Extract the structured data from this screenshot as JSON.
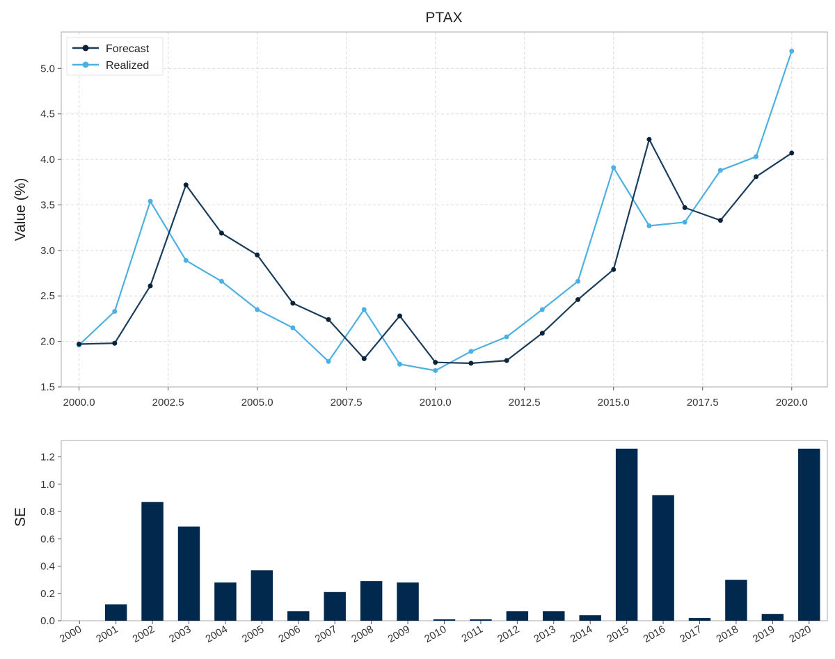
{
  "chart_data": [
    {
      "type": "line",
      "title": "PTAX",
      "xlabel": "",
      "ylabel": "Value (%)",
      "xlim": [
        1999.5,
        2021.0
      ],
      "ylim": [
        1.5,
        5.4
      ],
      "x_ticks": [
        "2000.0",
        "2002.5",
        "2005.0",
        "2007.5",
        "2010.0",
        "2012.5",
        "2015.0",
        "2017.5",
        "2020.0"
      ],
      "y_ticks": [
        "1.5",
        "2.0",
        "2.5",
        "3.0",
        "3.5",
        "4.0",
        "4.5",
        "5.0"
      ],
      "grid": true,
      "legend": "top-left",
      "x": [
        2000,
        2001,
        2002,
        2003,
        2004,
        2005,
        2006,
        2007,
        2008,
        2009,
        2010,
        2011,
        2012,
        2013,
        2014,
        2015,
        2016,
        2017,
        2018,
        2019,
        2020
      ],
      "series": [
        {
          "name": "Forecast",
          "color": "#1a3d5c",
          "values": [
            1.97,
            1.98,
            2.61,
            3.72,
            3.19,
            2.95,
            2.42,
            2.24,
            1.81,
            2.28,
            1.77,
            1.76,
            1.79,
            2.09,
            2.46,
            2.79,
            4.22,
            3.47,
            3.33,
            3.81,
            4.07
          ]
        },
        {
          "name": "Realized",
          "color": "#4db0e3",
          "values": [
            1.96,
            2.33,
            3.54,
            2.89,
            2.66,
            2.35,
            2.15,
            1.78,
            2.35,
            1.75,
            1.68,
            1.89,
            2.05,
            2.35,
            2.66,
            3.91,
            3.27,
            3.31,
            3.88,
            4.03,
            5.19
          ]
        }
      ]
    },
    {
      "type": "bar",
      "title": "",
      "xlabel": "",
      "ylabel": "SE",
      "ylim": [
        0,
        1.32
      ],
      "y_ticks": [
        "0.0",
        "0.2",
        "0.4",
        "0.6",
        "0.8",
        "1.0",
        "1.2"
      ],
      "color": "#00294d",
      "categories": [
        "2000",
        "2001",
        "2002",
        "2003",
        "2004",
        "2005",
        "2006",
        "2007",
        "2008",
        "2009",
        "2010",
        "2011",
        "2012",
        "2013",
        "2014",
        "2015",
        "2016",
        "2017",
        "2018",
        "2019",
        "2020"
      ],
      "values": [
        0.0,
        0.12,
        0.87,
        0.69,
        0.28,
        0.37,
        0.07,
        0.21,
        0.29,
        0.28,
        0.01,
        0.01,
        0.07,
        0.07,
        0.04,
        1.26,
        0.92,
        0.02,
        0.3,
        0.05,
        1.26
      ]
    }
  ]
}
